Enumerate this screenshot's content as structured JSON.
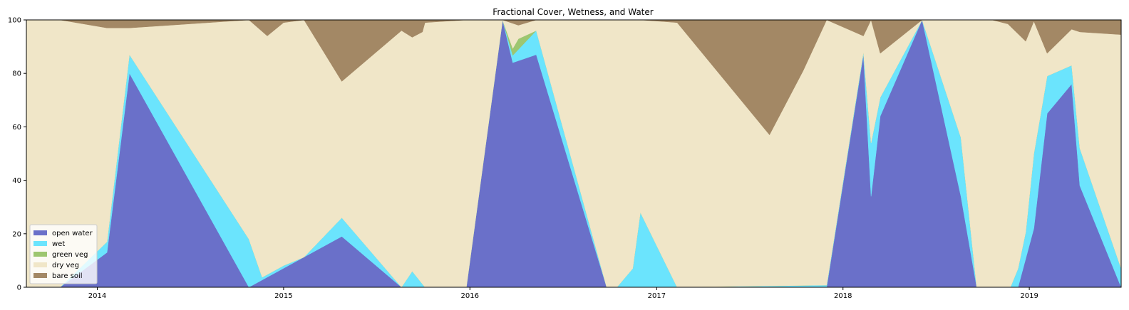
{
  "chart_data": {
    "type": "area",
    "title": "Fractional Cover, Wetness, and Water",
    "xlabel": "",
    "ylabel": "",
    "x_axis": "date",
    "xlim": [
      "2013-08-15",
      "2019-06-30"
    ],
    "ylim": [
      0,
      100
    ],
    "xticks": [
      "2014",
      "2015",
      "2016",
      "2017",
      "2018",
      "2019"
    ],
    "yticks": [
      0,
      20,
      40,
      60,
      80,
      100
    ],
    "grid": false,
    "legend_position": "lower-left",
    "series": [
      {
        "name": "open water",
        "color": "#6a70c9",
        "points": [
          [
            "2013-08-15",
            0
          ],
          [
            "2013-10-20",
            0
          ],
          [
            "2014-01-20",
            13
          ],
          [
            "2014-03-05",
            80
          ],
          [
            "2014-10-25",
            0
          ],
          [
            "2015-04-25",
            19
          ],
          [
            "2015-08-20",
            0
          ],
          [
            "2015-12-25",
            0
          ],
          [
            "2016-03-05",
            100
          ],
          [
            "2016-03-25",
            84
          ],
          [
            "2016-05-10",
            87
          ],
          [
            "2016-09-25",
            0
          ],
          [
            "2017-11-30",
            0
          ],
          [
            "2018-02-10",
            87
          ],
          [
            "2018-02-25",
            34
          ],
          [
            "2018-03-15",
            64
          ],
          [
            "2018-06-05",
            100
          ],
          [
            "2018-08-20",
            34
          ],
          [
            "2018-09-20",
            0
          ],
          [
            "2018-12-10",
            0
          ],
          [
            "2019-01-10",
            22
          ],
          [
            "2019-02-05",
            65
          ],
          [
            "2019-03-25",
            76
          ],
          [
            "2019-04-10",
            38
          ],
          [
            "2019-06-30",
            0
          ]
        ]
      },
      {
        "name": "wet",
        "color": "#6be4fd",
        "points": [
          [
            "2013-08-15",
            0
          ],
          [
            "2013-10-20",
            0
          ],
          [
            "2014-01-20",
            4
          ],
          [
            "2014-03-05",
            7
          ],
          [
            "2014-10-25",
            18
          ],
          [
            "2014-11-20",
            1
          ],
          [
            "2015-01-01",
            1
          ],
          [
            "2015-02-10",
            0
          ],
          [
            "2015-04-25",
            7
          ],
          [
            "2015-08-20",
            0
          ],
          [
            "2015-09-10",
            6
          ],
          [
            "2015-10-05",
            0
          ],
          [
            "2016-03-05",
            0
          ],
          [
            "2016-05-10",
            9
          ],
          [
            "2016-09-25",
            0
          ],
          [
            "2016-10-15",
            0
          ],
          [
            "2016-11-15",
            7
          ],
          [
            "2016-11-30",
            28
          ],
          [
            "2017-02-10",
            0
          ],
          [
            "2018-02-10",
            1
          ],
          [
            "2018-02-25",
            20
          ],
          [
            "2018-03-15",
            7
          ],
          [
            "2018-06-05",
            0
          ],
          [
            "2018-08-20",
            22
          ],
          [
            "2018-09-20",
            0
          ],
          [
            "2018-11-25",
            0
          ],
          [
            "2018-12-10",
            7
          ],
          [
            "2018-12-25",
            10
          ],
          [
            "2019-01-10",
            28
          ],
          [
            "2019-02-05",
            14
          ],
          [
            "2019-03-25",
            7
          ],
          [
            "2019-04-10",
            14
          ],
          [
            "2019-06-30",
            7
          ]
        ]
      },
      {
        "name": "green veg",
        "color": "#9dc670",
        "points": [
          [
            "2013-08-15",
            0
          ],
          [
            "2016-03-05",
            0
          ],
          [
            "2016-04-05",
            4
          ],
          [
            "2016-05-10",
            0
          ],
          [
            "2019-06-30",
            0
          ]
        ]
      },
      {
        "name": "dry veg",
        "color": "#f0e6c8",
        "points": [
          [
            "2013-08-15",
            0
          ],
          [
            "2019-06-30",
            0
          ]
        ]
      },
      {
        "name": "bare soil",
        "color": "#a38865",
        "points": [
          [
            "2013-08-15",
            0
          ],
          [
            "2013-10-20",
            0
          ],
          [
            "2014-01-20",
            3
          ],
          [
            "2014-03-05",
            3
          ],
          [
            "2014-10-25",
            0
          ],
          [
            "2014-11-30",
            6
          ],
          [
            "2015-01-01",
            1
          ],
          [
            "2015-02-10",
            0
          ],
          [
            "2015-04-25",
            23
          ],
          [
            "2015-08-20",
            4
          ],
          [
            "2015-09-10",
            6.5
          ],
          [
            "2015-09-30",
            4.5
          ],
          [
            "2015-10-05",
            1
          ],
          [
            "2015-12-25",
            0
          ],
          [
            "2016-03-05",
            0
          ],
          [
            "2016-04-05",
            2
          ],
          [
            "2016-05-10",
            0
          ],
          [
            "2016-09-25",
            0
          ],
          [
            "2016-12-01",
            0
          ],
          [
            "2017-02-10",
            1
          ],
          [
            "2017-08-10",
            43
          ],
          [
            "2017-10-15",
            19
          ],
          [
            "2017-11-30",
            0
          ],
          [
            "2018-02-10",
            6
          ],
          [
            "2018-02-25",
            0
          ],
          [
            "2018-03-15",
            12.5
          ],
          [
            "2018-06-05",
            0
          ],
          [
            "2018-10-20",
            0
          ],
          [
            "2018-11-20",
            1.5
          ],
          [
            "2018-12-25",
            8
          ],
          [
            "2019-01-10",
            0.5
          ],
          [
            "2019-02-05",
            12.5
          ],
          [
            "2019-03-25",
            3.5
          ],
          [
            "2019-04-10",
            4.5
          ],
          [
            "2019-06-30",
            5.5
          ]
        ]
      }
    ]
  }
}
